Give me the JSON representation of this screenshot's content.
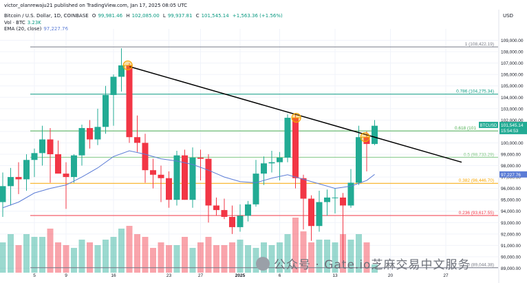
{
  "header": {
    "publisher": "victor_olanrewaju21 published on TradingView.com, Jan 17, 2025 08:05 UTC",
    "currency": "USD",
    "symbol_line": "Bitcoin / U.S. Dollar, 1D, COINBASE",
    "ohlc": {
      "o_label": "O",
      "o": "99,981.46",
      "h_label": "H",
      "h": "102,085.00",
      "l_label": "L",
      "l": "99,937.81",
      "c_label": "C",
      "c": "101,545.14",
      "chg": "+1,563.36 (+1.56%)"
    },
    "vol_label": "Vol · BTC",
    "vol_value": "3.23K",
    "ema_label": "EMA (20, close)",
    "ema_value": "97,227.76"
  },
  "price_tags": {
    "btc_label": "BTCUSD",
    "btc_price": "101,545.14",
    "btc_time": "15:54:53",
    "ema_price": "97,227.76"
  },
  "watermark": "公众号 · Gate.io芝麻交易中文服务",
  "colors": {
    "up": "#22ab94",
    "down": "#f23645",
    "ema": "#5b7cd6",
    "trend": "#000000",
    "orange": "#f7a600"
  },
  "chart_data": {
    "type": "candlestick",
    "symbol": "BTCUSD",
    "timeframe": "1D",
    "ylim": [
      88000,
      110000
    ],
    "y_ticks": [
      89000,
      90000,
      91000,
      92000,
      93000,
      94000,
      95000,
      96000,
      97000,
      98000,
      99000,
      100000,
      101000,
      102000,
      103000,
      104000,
      105000,
      106000,
      107000,
      108000,
      109000
    ],
    "x_ticks": [
      "5",
      "9",
      "16",
      "23",
      "27",
      "2025",
      "6",
      "13",
      "20",
      "27"
    ],
    "x_tick_index": [
      4,
      8,
      14,
      21,
      25,
      30,
      35,
      42,
      49,
      56
    ],
    "candles": [
      [
        94800,
        97400,
        93500,
        96200
      ],
      [
        96200,
        97800,
        94500,
        97000
      ],
      [
        97000,
        98300,
        95500,
        96800
      ],
      [
        96800,
        99000,
        95800,
        98500
      ],
      [
        98500,
        99500,
        97000,
        99100
      ],
      [
        99100,
        101500,
        98000,
        100300
      ],
      [
        100300,
        101300,
        96500,
        99000
      ],
      [
        99000,
        100200,
        97500,
        97300
      ],
      [
        97300,
        98300,
        94200,
        97000
      ],
      [
        97000,
        99000,
        96500,
        98900
      ],
      [
        98900,
        101600,
        98000,
        101300
      ],
      [
        101300,
        102000,
        99500,
        100300
      ],
      [
        100300,
        103000,
        99800,
        101400
      ],
      [
        101400,
        105000,
        100800,
        104200
      ],
      [
        104200,
        106000,
        101500,
        105800
      ],
      [
        105800,
        108300,
        104500,
        106800
      ],
      [
        106800,
        107000,
        100000,
        100500
      ],
      [
        100500,
        102400,
        99200,
        100000
      ],
      [
        100000,
        100800,
        96500,
        97600
      ],
      [
        97600,
        98600,
        96000,
        97200
      ],
      [
        97200,
        98000,
        94800,
        96900
      ],
      [
        96900,
        97500,
        94300,
        95000
      ],
      [
        95000,
        99300,
        94500,
        98900
      ],
      [
        98900,
        99400,
        95000,
        95000
      ],
      [
        95000,
        99600,
        94300,
        98700
      ],
      [
        98700,
        99400,
        96700,
        98600
      ],
      [
        98600,
        99000,
        93000,
        94500
      ],
      [
        94500,
        95200,
        93600,
        94100
      ],
      [
        94100,
        95100,
        93300,
        93500
      ],
      [
        93500,
        94500,
        92000,
        92600
      ],
      [
        92600,
        94600,
        92200,
        93600
      ],
      [
        93600,
        94900,
        93100,
        94600
      ],
      [
        94600,
        98500,
        94400,
        97300
      ],
      [
        97300,
        98800,
        96300,
        98200
      ],
      [
        98200,
        99300,
        97400,
        98300
      ],
      [
        98300,
        99200,
        96700,
        98700
      ],
      [
        98700,
        102500,
        98300,
        102200
      ],
      [
        102200,
        102500,
        96000,
        96900
      ],
      [
        96900,
        97200,
        92400,
        95100
      ],
      [
        95100,
        95400,
        91400,
        92700
      ],
      [
        92700,
        95800,
        92200,
        94800
      ],
      [
        94800,
        95900,
        93600,
        95200
      ],
      [
        95200,
        96000,
        93800,
        95200
      ],
      [
        95200,
        95600,
        89300,
        94500
      ],
      [
        94500,
        97700,
        94300,
        96500
      ],
      [
        96500,
        101500,
        96300,
        100500
      ],
      [
        100500,
        101000,
        97500,
        99900
      ],
      [
        99900,
        102000,
        99800,
        101500
      ]
    ],
    "volumes": [
      11,
      14,
      10,
      14,
      13,
      13,
      16,
      11,
      10,
      9,
      12,
      11,
      10,
      12,
      13,
      16,
      17,
      14,
      13,
      9,
      11,
      10,
      10,
      13,
      9,
      11,
      13,
      10,
      10,
      11,
      12,
      10,
      9,
      11,
      10,
      11,
      14,
      20,
      15,
      11,
      12,
      12,
      11,
      14,
      12,
      14,
      11,
      3
    ],
    "ema20": [
      [
        0,
        94300
      ],
      [
        2,
        94800
      ],
      [
        4,
        95600
      ],
      [
        6,
        96000
      ],
      [
        8,
        96300
      ],
      [
        10,
        97000
      ],
      [
        12,
        97800
      ],
      [
        14,
        98800
      ],
      [
        16,
        99300
      ],
      [
        18,
        99000
      ],
      [
        20,
        98600
      ],
      [
        22,
        98400
      ],
      [
        24,
        98100
      ],
      [
        26,
        97600
      ],
      [
        28,
        97000
      ],
      [
        30,
        96600
      ],
      [
        32,
        96500
      ],
      [
        34,
        96900
      ],
      [
        36,
        97200
      ],
      [
        38,
        96800
      ],
      [
        40,
        96400
      ],
      [
        42,
        96000
      ],
      [
        44,
        96200
      ],
      [
        46,
        96700
      ],
      [
        47,
        97227.76
      ]
    ],
    "trendline": [
      [
        16,
        106700
      ],
      [
        58,
        98300
      ]
    ],
    "fibonacci": [
      {
        "ratio": "1",
        "price": 108422.19,
        "label": "1 (108,422.19)",
        "color": "#787b86"
      },
      {
        "ratio": "0.786",
        "price": 104275.34,
        "label": "0.786 (104,275.34)",
        "color": "#089981"
      },
      {
        "ratio": "0.618",
        "price": 101050,
        "label": "0.618 (101",
        "color": "#4caf50"
      },
      {
        "ratio": "0.5",
        "price": 98733.29,
        "label": "0.5 (98,733.29)",
        "color": "#81c784"
      },
      {
        "ratio": "0.382",
        "price": 96446.7,
        "label": "0.382 (96,446.70)",
        "color": "#f7a600"
      },
      {
        "ratio": "0.236",
        "price": 93617.55,
        "label": "0.236 (93,617.55)",
        "color": "#f23645"
      },
      {
        "ratio": "0",
        "price": 89044.38,
        "label": "0 (89,044.38)",
        "color": "#787b86"
      }
    ],
    "markers": [
      [
        15.8,
        106800
      ],
      [
        37.1,
        102200
      ],
      [
        45.8,
        100500
      ]
    ]
  }
}
